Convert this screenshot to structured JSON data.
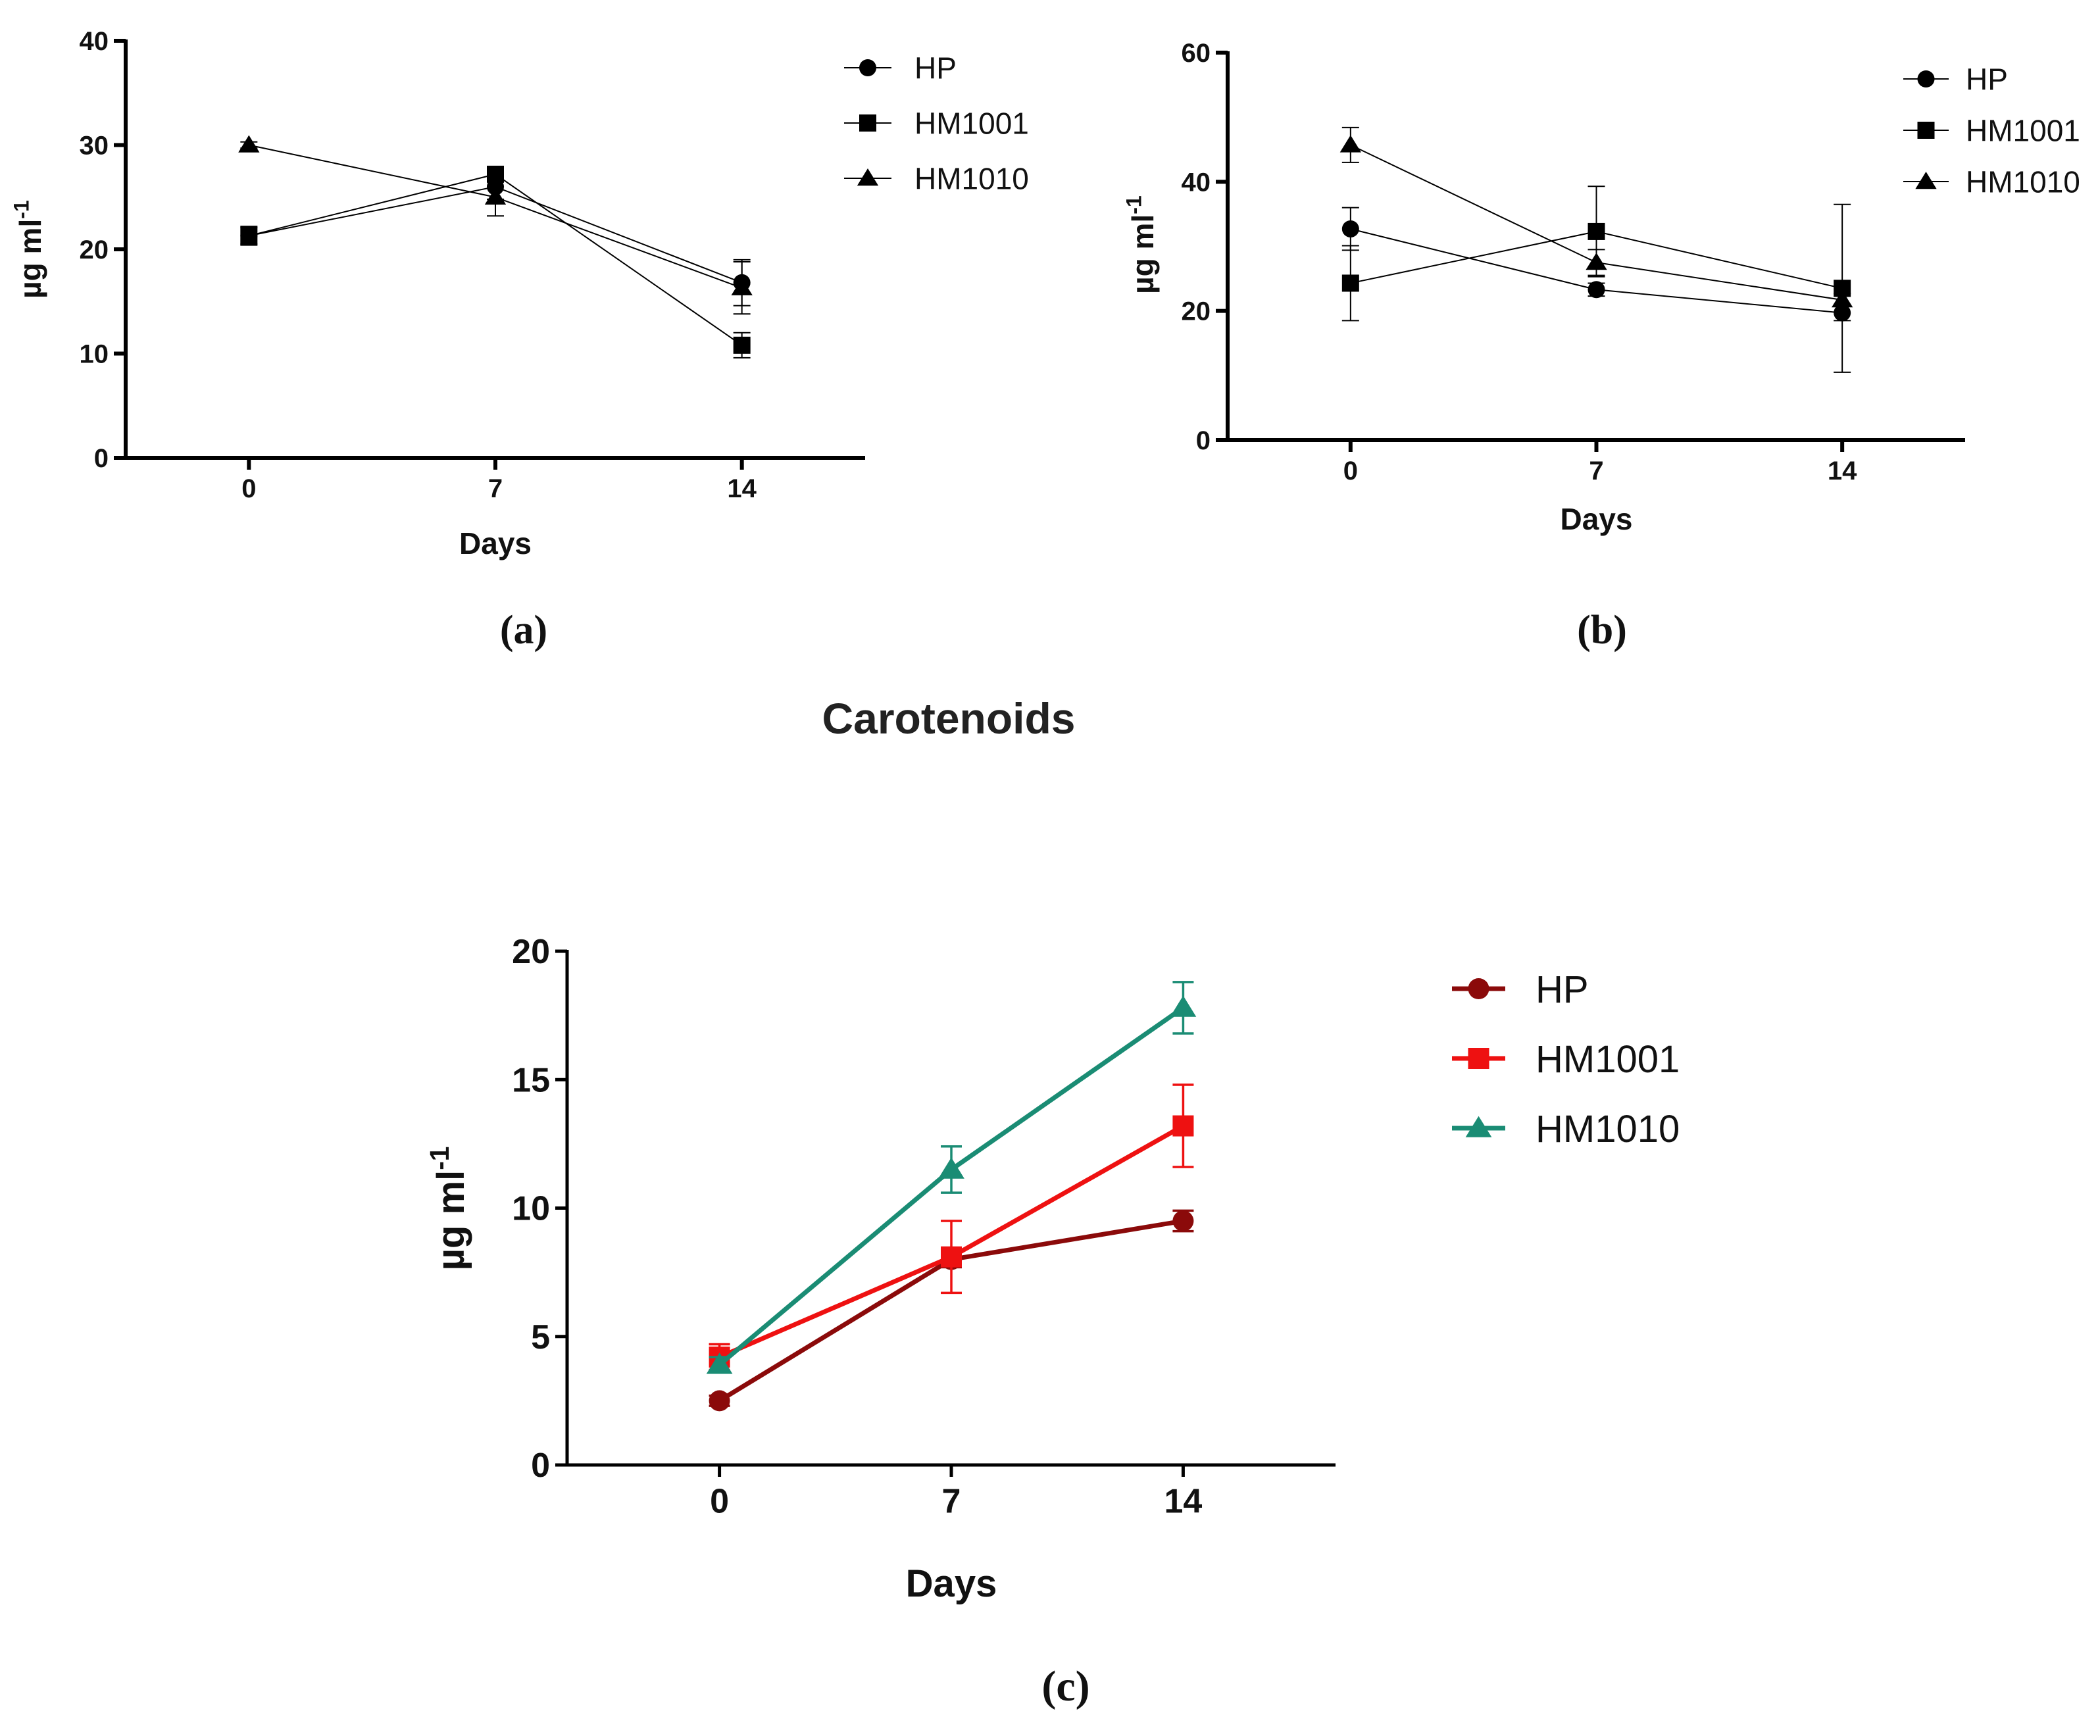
{
  "chart_data": [
    {
      "type": "line",
      "panel_label": "(a)",
      "title": "",
      "xlabel": "Days",
      "ylabel": "µg ml",
      "ylabel_sup": "-1",
      "x": [
        0,
        7,
        14
      ],
      "x_tick_labels": [
        "0",
        "7",
        "14"
      ],
      "xlim": [
        -3.5,
        17.5
      ],
      "ylim": [
        0,
        40
      ],
      "y_ticks": [
        0,
        10,
        20,
        30,
        40
      ],
      "y_tick_labels": [
        "0",
        "10",
        "20",
        "30",
        "40"
      ],
      "legend_position": "top-right",
      "colors": {
        "HP": "#000000",
        "HM1001": "#000000",
        "HM1010": "#000000",
        "line": "#000000"
      },
      "series": [
        {
          "name": "HP",
          "marker": "circle",
          "values": [
            21.3,
            26.0,
            16.8
          ],
          "errors": [
            0.8,
            1.2,
            2.2
          ]
        },
        {
          "name": "HM1001",
          "marker": "square",
          "values": [
            21.3,
            27.2,
            10.8
          ],
          "errors": [
            0.9,
            0.5,
            1.2
          ]
        },
        {
          "name": "HM1010",
          "marker": "triangle",
          "values": [
            30.0,
            25.0,
            16.3
          ],
          "errors": [
            0.3,
            1.8,
            2.5
          ]
        }
      ]
    },
    {
      "type": "line",
      "panel_label": "(b)",
      "title": "",
      "xlabel": "Days",
      "ylabel": "µg ml",
      "ylabel_sup": "-1",
      "x": [
        0,
        7,
        14
      ],
      "x_tick_labels": [
        "0",
        "7",
        "14"
      ],
      "xlim": [
        -3.5,
        17.5
      ],
      "ylim": [
        0,
        60
      ],
      "y_ticks": [
        0,
        20,
        40,
        60
      ],
      "y_tick_labels": [
        "0",
        "20",
        "40",
        "60"
      ],
      "legend_position": "top-right",
      "colors": {
        "HP": "#000000",
        "HM1001": "#000000",
        "HM1010": "#000000",
        "line": "#000000"
      },
      "series": [
        {
          "name": "HP",
          "marker": "circle",
          "values": [
            32.7,
            23.3,
            19.7
          ],
          "errors": [
            3.3,
            1.0,
            1.2
          ]
        },
        {
          "name": "HM1001",
          "marker": "square",
          "values": [
            24.3,
            32.3,
            23.5
          ],
          "errors": [
            5.8,
            7.0,
            13.0
          ]
        },
        {
          "name": "HM1010",
          "marker": "triangle",
          "values": [
            45.7,
            27.5,
            21.7
          ],
          "errors": [
            2.7,
            2.0,
            1.0
          ]
        }
      ]
    },
    {
      "type": "line",
      "panel_label": "(c)",
      "title": "Carotenoids",
      "xlabel": "Days",
      "ylabel": "µg ml",
      "ylabel_sup": "-1",
      "x": [
        0,
        7,
        14
      ],
      "x_tick_labels": [
        "0",
        "7",
        "14"
      ],
      "xlim": [
        -4.6,
        18.6
      ],
      "ylim": [
        0,
        20
      ],
      "y_ticks": [
        0,
        5,
        10,
        15,
        20
      ],
      "y_tick_labels": [
        "0",
        "5",
        "10",
        "15",
        "20"
      ],
      "legend_position": "top-right",
      "colors": {
        "HP": "#8b0a0a",
        "HM1001": "#ee1111",
        "HM1010": "#1a8c74",
        "line": "#000000"
      },
      "series": [
        {
          "name": "HP",
          "marker": "circle",
          "values": [
            2.5,
            8.0,
            9.5
          ],
          "errors": [
            0.2,
            0.3,
            0.4
          ]
        },
        {
          "name": "HM1001",
          "marker": "square",
          "values": [
            4.2,
            8.1,
            13.2
          ],
          "errors": [
            0.5,
            1.4,
            1.6
          ]
        },
        {
          "name": "HM1010",
          "marker": "triangle",
          "values": [
            3.9,
            11.5,
            17.8
          ],
          "errors": [
            0.3,
            0.9,
            1.0
          ]
        }
      ]
    }
  ]
}
